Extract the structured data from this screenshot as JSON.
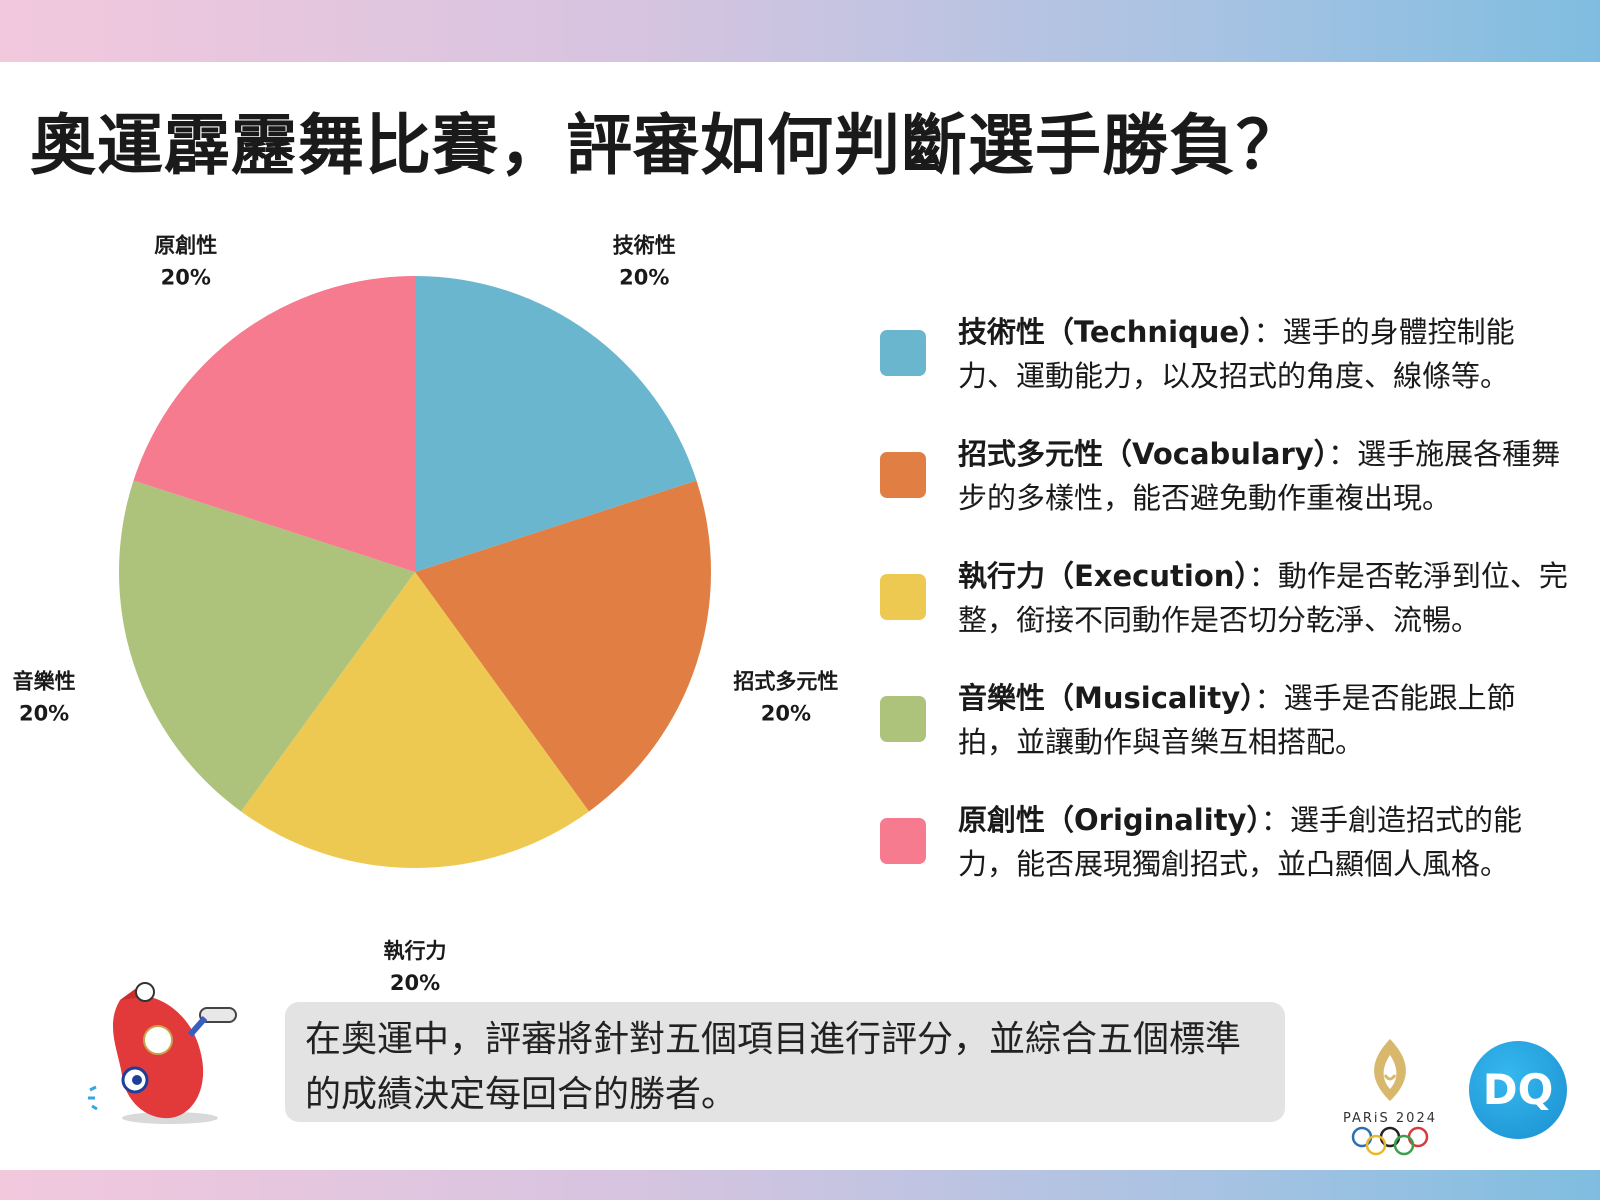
{
  "title": "奧運霹靂舞比賽，評審如何判斷選手勝負？",
  "chart_data": {
    "type": "pie",
    "categories": [
      "技術性",
      "招式多元性",
      "執行力",
      "音樂性",
      "原創性"
    ],
    "values": [
      20,
      20,
      20,
      20,
      20
    ],
    "value_labels": [
      "20%",
      "20%",
      "20%",
      "20%",
      "20%"
    ],
    "colors": [
      "#6bb6cf",
      "#e07e44",
      "#eec952",
      "#adc27a",
      "#f67b8e"
    ],
    "start": "12 o'clock",
    "direction": "clockwise",
    "legend": "right"
  },
  "legend": [
    {
      "name": "技術性（Technique）",
      "desc": "：選手的身體控制能力、運動能力，以及招式的角度、線條等。",
      "color": "#6bb6cf"
    },
    {
      "name": "招式多元性（Vocabulary）",
      "desc": "：選手施展各種舞步的多樣性，能否避免動作重複出現。",
      "color": "#e07e44"
    },
    {
      "name": "執行力（Execution）",
      "desc": "：動作是否乾淨到位、完整，銜接不同動作是否切分乾淨、流暢。",
      "color": "#eec952"
    },
    {
      "name": "音樂性（Musicality）",
      "desc": "：選手是否能跟上節拍，並讓動作與音樂互相搭配。",
      "color": "#adc27a"
    },
    {
      "name": "原創性（Originality）",
      "desc": "：選手創造招式的能力，能否展現獨創招式，並凸顯個人風格。",
      "color": "#f67b8e"
    }
  ],
  "caption": "在奧運中，評審將針對五個項目進行評分，並綜合五個標準的成績決定每回合的勝者。",
  "logos": {
    "paris": "PARiS 2024",
    "dq": "DQ"
  },
  "icons": [
    "mascot-icon",
    "paris-2024-logo",
    "olympic-rings-icon",
    "dq-logo"
  ]
}
